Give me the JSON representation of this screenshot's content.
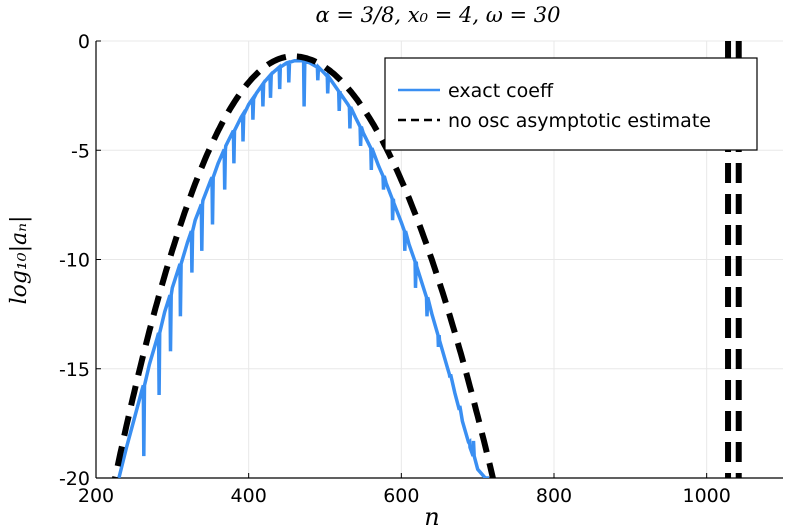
{
  "chart_data": {
    "type": "line",
    "title": "α = 3/8, x₀ = 4, ω = 30",
    "xlabel": "n",
    "ylabel": "log₁₀|aₙ|",
    "xlim": [
      200,
      1100
    ],
    "ylim": [
      -20,
      0
    ],
    "x_ticks": [
      200,
      400,
      600,
      800,
      1000
    ],
    "y_ticks": [
      0,
      -5,
      -10,
      -15,
      -20
    ],
    "y_tick_labels": [
      "0",
      "-5",
      "-10",
      "-15",
      "-20"
    ],
    "grid": true,
    "legend_position": "top-right",
    "series": [
      {
        "name": "exact coeff",
        "color": "#3a8ff2",
        "style": "solid",
        "x": [
          230,
          240,
          250,
          260,
          270,
          280,
          290,
          300,
          310,
          320,
          330,
          340,
          350,
          360,
          370,
          380,
          390,
          400,
          410,
          420,
          430,
          440,
          450,
          460,
          470,
          480,
          490,
          500,
          510,
          520,
          530,
          540,
          550,
          560,
          570,
          580,
          590,
          600,
          610,
          620,
          630,
          640,
          650,
          660,
          670,
          680,
          690,
          700,
          710,
          715
        ],
        "y": [
          -20.0,
          -18.6,
          -17.3,
          -16.0,
          -14.8,
          -13.6,
          -12.4,
          -11.3,
          -10.2,
          -9.2,
          -8.2,
          -7.3,
          -6.4,
          -5.6,
          -4.8,
          -4.1,
          -3.5,
          -2.9,
          -2.4,
          -1.9,
          -1.5,
          -1.2,
          -1.0,
          -0.9,
          -0.9,
          -1.0,
          -1.2,
          -1.5,
          -1.9,
          -2.4,
          -2.9,
          -3.5,
          -4.2,
          -4.9,
          -5.7,
          -6.5,
          -7.4,
          -8.3,
          -9.3,
          -10.3,
          -11.4,
          -12.5,
          -13.7,
          -14.9,
          -16.1,
          -17.4,
          -18.6,
          -19.6,
          -20.0,
          -20.0
        ],
        "dips": [
          [
            262,
            -19.0
          ],
          [
            282,
            -16.2
          ],
          [
            297,
            -14.2
          ],
          [
            310,
            -12.6
          ],
          [
            325,
            -10.6
          ],
          [
            338,
            -9.6
          ],
          [
            352,
            -8.4
          ],
          [
            368,
            -6.8
          ],
          [
            380,
            -5.6
          ],
          [
            392,
            -4.6
          ],
          [
            405,
            -3.6
          ],
          [
            418,
            -3.0
          ],
          [
            428,
            -2.6
          ],
          [
            440,
            -2.2
          ],
          [
            452,
            -1.9
          ],
          [
            472,
            -3.0
          ],
          [
            490,
            -1.8
          ],
          [
            503,
            -2.4
          ],
          [
            518,
            -3.2
          ],
          [
            532,
            -4.0
          ],
          [
            546,
            -4.8
          ],
          [
            560,
            -5.9
          ],
          [
            576,
            -6.8
          ],
          [
            588,
            -8.2
          ],
          [
            604,
            -9.6
          ],
          [
            618,
            -11.3
          ],
          [
            633,
            -12.6
          ],
          [
            648,
            -14.0
          ],
          [
            663,
            -15.4
          ],
          [
            676,
            -16.7
          ],
          [
            688,
            -18.4
          ],
          [
            694,
            -18.3
          ]
        ]
      },
      {
        "name": "no osc asymptotic estimate",
        "color": "#000000",
        "style": "dashed",
        "parabola": {
          "peak_x": 458,
          "peak_y": -0.7,
          "x_at_minus20": [
            225,
            720
          ]
        },
        "x_domain": [
          220,
          725
        ],
        "singularities": [
          1028,
          1042
        ]
      }
    ]
  }
}
